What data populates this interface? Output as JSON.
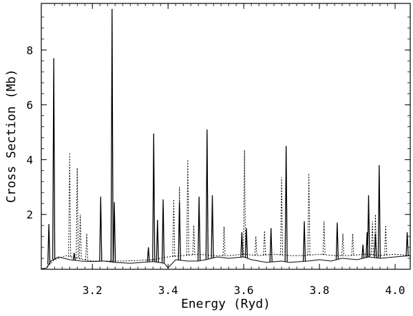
{
  "chart_data": {
    "type": "line",
    "title": "",
    "xlabel": "Energy (Ryd)",
    "ylabel": "Cross Section (Mb)",
    "xlim": [
      3.065,
      4.04
    ],
    "ylim": [
      0.0,
      9.7
    ],
    "x_ticks": [
      3.2,
      3.4,
      3.6,
      3.8,
      4.0
    ],
    "x_tick_labels": [
      "3.2",
      "3.4",
      "3.6",
      "3.8",
      "4.0"
    ],
    "y_ticks": [
      2,
      4,
      6,
      8
    ],
    "y_tick_labels": [
      "2",
      "4",
      "6",
      "8"
    ],
    "grid": false,
    "series": [
      {
        "style": "solid",
        "background": [
          [
            3.065,
            0.02
          ],
          [
            3.08,
            0.05
          ],
          [
            3.09,
            0.3
          ],
          [
            3.11,
            0.45
          ],
          [
            3.14,
            0.35
          ],
          [
            3.17,
            0.3
          ],
          [
            3.2,
            0.28
          ],
          [
            3.23,
            0.3
          ],
          [
            3.26,
            0.25
          ],
          [
            3.3,
            0.22
          ],
          [
            3.33,
            0.25
          ],
          [
            3.36,
            0.28
          ],
          [
            3.39,
            0.22
          ],
          [
            3.4,
            0.05
          ],
          [
            3.42,
            0.35
          ],
          [
            3.45,
            0.3
          ],
          [
            3.48,
            0.3
          ],
          [
            3.5,
            0.35
          ],
          [
            3.53,
            0.45
          ],
          [
            3.56,
            0.4
          ],
          [
            3.6,
            0.45
          ],
          [
            3.62,
            0.35
          ],
          [
            3.64,
            0.3
          ],
          [
            3.66,
            0.25
          ],
          [
            3.7,
            0.3
          ],
          [
            3.72,
            0.25
          ],
          [
            3.75,
            0.28
          ],
          [
            3.77,
            0.3
          ],
          [
            3.8,
            0.35
          ],
          [
            3.83,
            0.3
          ],
          [
            3.86,
            0.4
          ],
          [
            3.9,
            0.35
          ],
          [
            3.93,
            0.45
          ],
          [
            3.96,
            0.4
          ],
          [
            4.0,
            0.45
          ],
          [
            4.04,
            0.5
          ]
        ],
        "peaks": [
          [
            3.085,
            1.65
          ],
          [
            3.098,
            7.7
          ],
          [
            3.152,
            0.6
          ],
          [
            3.222,
            2.65
          ],
          [
            3.252,
            9.5
          ],
          [
            3.258,
            2.45
          ],
          [
            3.348,
            0.8
          ],
          [
            3.362,
            4.95
          ],
          [
            3.372,
            1.8
          ],
          [
            3.387,
            2.55
          ],
          [
            3.43,
            2.45
          ],
          [
            3.482,
            2.65
          ],
          [
            3.503,
            5.1
          ],
          [
            3.517,
            2.7
          ],
          [
            3.595,
            1.35
          ],
          [
            3.607,
            1.5
          ],
          [
            3.672,
            1.5
          ],
          [
            3.712,
            4.5
          ],
          [
            3.76,
            1.75
          ],
          [
            3.847,
            1.7
          ],
          [
            3.915,
            0.9
          ],
          [
            3.926,
            1.35
          ],
          [
            3.93,
            2.7
          ],
          [
            3.948,
            1.3
          ],
          [
            3.958,
            3.8
          ],
          [
            4.032,
            1.35
          ]
        ]
      },
      {
        "style": "dotted",
        "background": [
          [
            3.08,
            0.1
          ],
          [
            3.1,
            0.35
          ],
          [
            3.13,
            0.5
          ],
          [
            3.16,
            0.4
          ],
          [
            3.2,
            0.3
          ],
          [
            3.24,
            0.3
          ],
          [
            3.28,
            0.3
          ],
          [
            3.32,
            0.32
          ],
          [
            3.36,
            0.35
          ],
          [
            3.4,
            0.45
          ],
          [
            3.44,
            0.5
          ],
          [
            3.48,
            0.55
          ],
          [
            3.52,
            0.5
          ],
          [
            3.56,
            0.5
          ],
          [
            3.6,
            0.55
          ],
          [
            3.64,
            0.5
          ],
          [
            3.68,
            0.55
          ],
          [
            3.72,
            0.5
          ],
          [
            3.76,
            0.5
          ],
          [
            3.8,
            0.55
          ],
          [
            3.84,
            0.5
          ],
          [
            3.88,
            0.5
          ],
          [
            3.92,
            0.55
          ],
          [
            3.96,
            0.5
          ],
          [
            4.0,
            0.55
          ],
          [
            4.04,
            0.5
          ]
        ],
        "peaks": [
          [
            3.14,
            4.25
          ],
          [
            3.16,
            3.7
          ],
          [
            3.168,
            2.0
          ],
          [
            3.185,
            1.3
          ],
          [
            3.415,
            2.55
          ],
          [
            3.43,
            3.0
          ],
          [
            3.452,
            4.0
          ],
          [
            3.468,
            1.6
          ],
          [
            3.548,
            1.55
          ],
          [
            3.602,
            4.35
          ],
          [
            3.632,
            1.2
          ],
          [
            3.655,
            1.4
          ],
          [
            3.7,
            3.35
          ],
          [
            3.772,
            3.5
          ],
          [
            3.812,
            1.75
          ],
          [
            3.862,
            1.3
          ],
          [
            3.888,
            1.3
          ],
          [
            3.94,
            1.75
          ],
          [
            3.948,
            2.0
          ],
          [
            3.975,
            1.6
          ]
        ]
      }
    ]
  }
}
